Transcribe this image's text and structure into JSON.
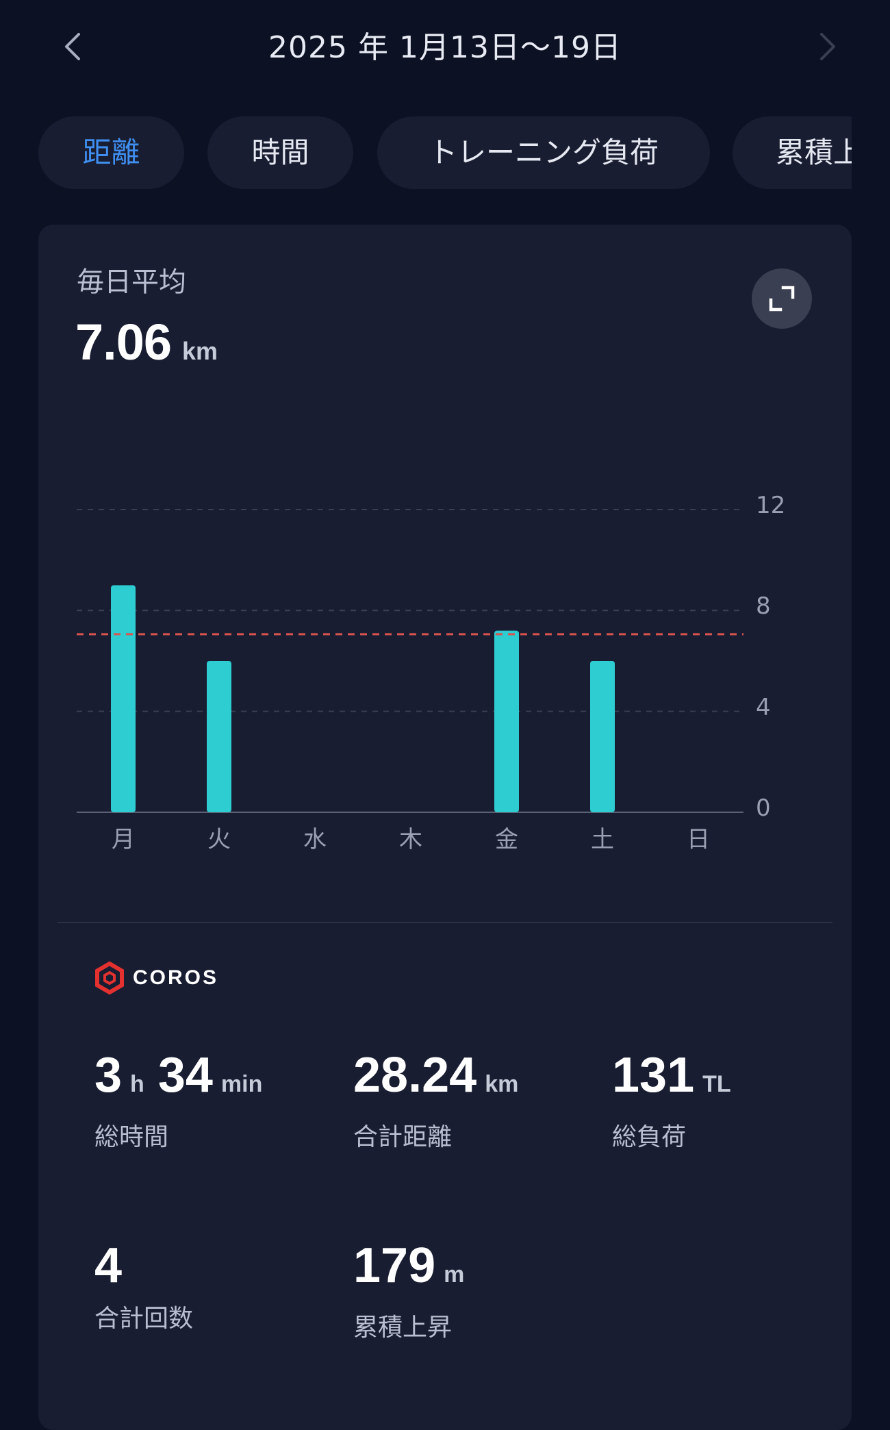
{
  "header": {
    "title": "2025 年 1月13日～19日",
    "prev_icon": "chevron-left-icon",
    "next_icon": "chevron-right-icon"
  },
  "tabs": [
    {
      "label": "距離",
      "active": true
    },
    {
      "label": "時間",
      "active": false
    },
    {
      "label": "トレーニング負荷",
      "active": false
    },
    {
      "label": "累積上昇",
      "active": false
    }
  ],
  "summary": {
    "label": "毎日平均",
    "value": "7.06",
    "unit": "km",
    "expand_icon": "expand-icon"
  },
  "chart_data": {
    "type": "bar",
    "categories": [
      "月",
      "火",
      "水",
      "木",
      "金",
      "土",
      "日"
    ],
    "values": [
      9.0,
      6.0,
      0,
      0,
      7.2,
      6.0,
      0
    ],
    "yticks": [
      "0",
      "4",
      "8",
      "12"
    ],
    "ylim": [
      0,
      12
    ],
    "average": 7.06,
    "bar_color": "#2dcdd1",
    "average_line_color": "#d9534f",
    "grid": true
  },
  "brand": {
    "name": "COROS",
    "logo_color": "#e2312f"
  },
  "stats": [
    {
      "parts": [
        {
          "v": "3",
          "u": "h"
        },
        {
          "v": "34",
          "u": "min"
        }
      ],
      "label": "総時間"
    },
    {
      "parts": [
        {
          "v": "28.24",
          "u": "km"
        }
      ],
      "label": "合計距離"
    },
    {
      "parts": [
        {
          "v": "131",
          "u": "TL"
        }
      ],
      "label": "総負荷"
    },
    {
      "parts": [
        {
          "v": "4",
          "u": ""
        }
      ],
      "label": "合計回数"
    },
    {
      "parts": [
        {
          "v": "179",
          "u": "m"
        }
      ],
      "label": "累積上昇"
    }
  ]
}
